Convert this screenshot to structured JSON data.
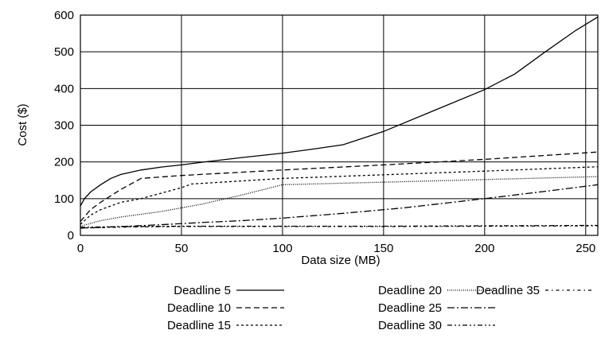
{
  "chart_data": {
    "type": "line",
    "title": "",
    "xlabel": "Data size (MB)",
    "ylabel": "Cost ($)",
    "xlim": [
      0,
      256
    ],
    "ylim": [
      0,
      600
    ],
    "xticks": [
      0,
      50,
      100,
      150,
      200,
      250
    ],
    "yticks": [
      0,
      100,
      200,
      300,
      400,
      500,
      600
    ],
    "grid": true,
    "legend_position": "bottom",
    "series": [
      {
        "name": "Deadline 5",
        "dash": "solid",
        "x": [
          0,
          2,
          5,
          10,
          15,
          20,
          30,
          40,
          50,
          60,
          80,
          100,
          115,
          130,
          150,
          175,
          200,
          215,
          230,
          245,
          256
        ],
        "y": [
          80,
          100,
          118,
          138,
          155,
          166,
          178,
          186,
          192,
          199,
          212,
          224,
          235,
          247,
          283,
          340,
          397,
          440,
          500,
          558,
          595
        ]
      },
      {
        "name": "Deadline 10",
        "dash": "dashed",
        "x": [
          0,
          5,
          10,
          20,
          30,
          50,
          100,
          150,
          200,
          256
        ],
        "y": [
          38,
          70,
          90,
          125,
          155,
          163,
          178,
          192,
          207,
          227
        ]
      },
      {
        "name": "Deadline 15",
        "dash": "dotted-short",
        "x": [
          0,
          5,
          10,
          20,
          30,
          50,
          55,
          100,
          150,
          200,
          256
        ],
        "y": [
          30,
          55,
          70,
          90,
          100,
          130,
          140,
          155,
          165,
          175,
          187
        ]
      },
      {
        "name": "Deadline 20",
        "dash": "dotted",
        "x": [
          0,
          10,
          20,
          40,
          60,
          80,
          100,
          150,
          200,
          256
        ],
        "y": [
          25,
          40,
          50,
          65,
          85,
          110,
          138,
          145,
          152,
          160
        ]
      },
      {
        "name": "Deadline 25",
        "dash": "dash-dot",
        "x": [
          0,
          20,
          40,
          60,
          80,
          100,
          130,
          160,
          200,
          230,
          256
        ],
        "y": [
          20,
          24,
          29,
          35,
          40,
          47,
          60,
          75,
          100,
          120,
          138
        ]
      },
      {
        "name": "Deadline 30",
        "dash": "dash-dot-dot",
        "x": [
          0,
          25,
          50,
          100,
          150,
          200,
          256
        ],
        "y": [
          22,
          24,
          25,
          25,
          25,
          26,
          27
        ]
      },
      {
        "name": "Deadline 35",
        "dash": "dash-dot-loose",
        "x": [
          0,
          25,
          50,
          100,
          150,
          200,
          256
        ],
        "y": [
          20,
          23,
          24,
          24,
          24,
          25,
          26
        ]
      }
    ]
  }
}
